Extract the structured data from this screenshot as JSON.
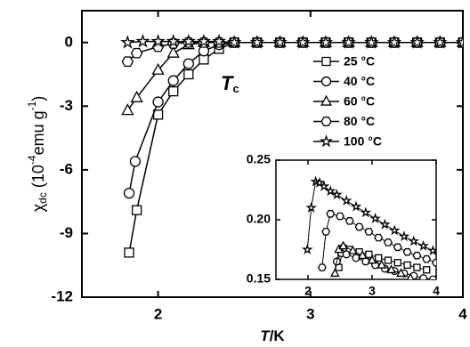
{
  "chart_data": [
    {
      "type": "scatter-line",
      "ylabel": [
        "χ",
        "dc",
        " (10",
        "-4",
        "emu g",
        "-1",
        ")"
      ],
      "xlabel": [
        "T",
        "/K"
      ],
      "annotation": [
        "T",
        "c"
      ],
      "xlim": [
        1.5,
        4
      ],
      "xticks": [
        2,
        3,
        4
      ],
      "ylim": [
        -12,
        1.5
      ],
      "yticks": [
        0,
        -3,
        -6,
        -9,
        -12
      ],
      "legend": "upper right",
      "series": [
        {
          "name": "25 °C",
          "marker": "square",
          "color": "#000000",
          "x": [
            1.81,
            1.86,
            2.0,
            2.1,
            2.2,
            2.3,
            2.4,
            2.5,
            2.65,
            2.8,
            2.95,
            3.1,
            3.25,
            3.4,
            3.55,
            3.7,
            3.85,
            4.0
          ],
          "values": [
            -9.9,
            -7.9,
            -3.4,
            -2.3,
            -1.5,
            -0.8,
            -0.3,
            0,
            0,
            0,
            0,
            0,
            0,
            0,
            0,
            0,
            0,
            0
          ]
        },
        {
          "name": "40 °C",
          "marker": "circle",
          "color": "#000000",
          "x": [
            1.81,
            1.85,
            2.0,
            2.1,
            2.2,
            2.3,
            2.4,
            2.5,
            2.65,
            2.8,
            2.95,
            3.1,
            3.25,
            3.4,
            3.55,
            3.7,
            3.85,
            4.0
          ],
          "values": [
            -7.1,
            -5.6,
            -2.8,
            -1.8,
            -1.0,
            -0.4,
            -0.1,
            0,
            0,
            0,
            0,
            0,
            0,
            0,
            0,
            0,
            0,
            0
          ]
        },
        {
          "name": "60 °C",
          "marker": "triangle",
          "color": "#000000",
          "x": [
            1.8,
            1.86,
            2.0,
            2.1,
            2.2,
            2.3,
            2.4,
            2.5,
            2.65,
            2.8,
            2.95,
            3.1,
            3.25,
            3.4,
            3.55,
            3.7,
            3.85,
            4.0
          ],
          "values": [
            -3.2,
            -2.6,
            -1.3,
            -0.5,
            -0.1,
            0,
            0,
            0,
            0,
            0,
            0,
            0,
            0,
            0,
            0,
            0,
            0,
            0
          ]
        },
        {
          "name": "80 °C",
          "marker": "hexagon",
          "color": "#000000",
          "x": [
            1.8,
            1.86,
            2.0,
            2.1,
            2.2,
            2.3,
            2.4,
            2.5,
            2.65,
            2.8,
            2.95,
            3.1,
            3.25,
            3.4,
            3.55,
            3.7,
            3.85,
            4.0
          ],
          "values": [
            -0.9,
            -0.5,
            -0.2,
            -0.05,
            0,
            0,
            0,
            0,
            0,
            0,
            0,
            0,
            0,
            0,
            0,
            0,
            0,
            0
          ]
        },
        {
          "name": "100 °C",
          "marker": "star",
          "color": "#000000",
          "x": [
            1.8,
            1.9,
            2.0,
            2.1,
            2.2,
            2.3,
            2.4,
            2.5,
            2.65,
            2.8,
            2.95,
            3.1,
            3.25,
            3.4,
            3.55,
            3.7,
            3.85,
            4.0
          ],
          "values": [
            0,
            0.05,
            0.05,
            0.05,
            0.05,
            0.05,
            0.05,
            0,
            0,
            0,
            0,
            0,
            0,
            0,
            0,
            0,
            0,
            0
          ]
        }
      ]
    },
    {
      "type": "scatter-line",
      "xlim": [
        1.5,
        4
      ],
      "xticks": [
        2,
        3,
        4
      ],
      "ylim": [
        0.15,
        0.25
      ],
      "yticks": [
        0.15,
        {
          "value": 0.2,
          "label": "0.20"
        },
        0.25
      ],
      "series": [
        {
          "marker": "square",
          "color": "#000000",
          "x": [
            2.48,
            2.55,
            2.65,
            2.8,
            2.95,
            3.1,
            3.25,
            3.4,
            3.55,
            3.7,
            3.85
          ],
          "values": [
            0.16,
            0.176,
            0.175,
            0.173,
            0.171,
            0.168,
            0.166,
            0.164,
            0.162,
            0.16,
            0.158
          ]
        },
        {
          "marker": "circle",
          "color": "#000000",
          "x": [
            2.45,
            2.52,
            2.6,
            2.75,
            2.9,
            3.05,
            3.2,
            3.35,
            3.5,
            3.65,
            3.8,
            3.95
          ],
          "values": [
            0.165,
            0.172,
            0.171,
            0.168,
            0.165,
            0.162,
            0.159,
            0.157,
            0.155,
            0.153,
            0.151,
            0.15
          ]
        },
        {
          "marker": "triangle",
          "color": "#000000",
          "x": [
            2.42,
            2.48,
            2.55,
            2.7,
            2.85,
            3.0,
            3.15,
            3.3,
            3.45,
            3.6
          ],
          "values": [
            0.155,
            0.175,
            0.178,
            0.174,
            0.17,
            0.166,
            0.162,
            0.158,
            0.155,
            0.151
          ]
        },
        {
          "marker": "hexagon",
          "color": "#000000",
          "x": [
            2.22,
            2.28,
            2.35,
            2.5,
            2.65,
            2.8,
            2.95,
            3.1,
            3.25,
            3.4,
            3.55,
            3.7,
            3.85,
            4.0
          ],
          "values": [
            0.16,
            0.19,
            0.205,
            0.203,
            0.199,
            0.194,
            0.19,
            0.185,
            0.181,
            0.177,
            0.173,
            0.17,
            0.167,
            0.164
          ]
        },
        {
          "marker": "star",
          "color": "#000000",
          "x": [
            1.99,
            2.05,
            2.12,
            2.18,
            2.25,
            2.35,
            2.45,
            2.6,
            2.75,
            2.9,
            3.05,
            3.2,
            3.35,
            3.5,
            3.65,
            3.8,
            3.95
          ],
          "values": [
            0.175,
            0.21,
            0.232,
            0.231,
            0.228,
            0.224,
            0.221,
            0.216,
            0.211,
            0.206,
            0.201,
            0.196,
            0.191,
            0.186,
            0.182,
            0.178,
            0.174
          ]
        }
      ]
    }
  ]
}
